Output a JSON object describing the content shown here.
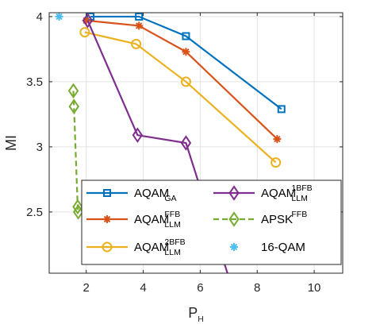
{
  "chart_data": {
    "type": "line",
    "xlabel": {
      "main": "P",
      "sub": "H"
    },
    "ylabel": "MI",
    "xlim": [
      0.7,
      11
    ],
    "ylim": [
      2.03,
      4.03
    ],
    "xticks": [
      2,
      4,
      6,
      8,
      10
    ],
    "yticks": [
      2.5,
      3,
      3.5,
      4
    ],
    "ytick_labels": [
      "2.5",
      "3",
      "3.5",
      "4"
    ],
    "grid": true,
    "legend_position": "bottom-left",
    "series": [
      {
        "key": "ga",
        "name": {
          "main": "AQAM",
          "sub": "GA",
          "sup": ""
        },
        "color": "#0072BD",
        "marker": "square",
        "line": "solid",
        "x": [
          2.15,
          3.85,
          5.5,
          8.85
        ],
        "y": [
          4.0,
          4.0,
          3.85,
          3.29
        ]
      },
      {
        "key": "ffb",
        "name": {
          "main": "AQAM",
          "sub": "LLM",
          "sup": "FFB"
        },
        "color": "#D95319",
        "marker": "asterisk",
        "line": "solid",
        "x": [
          2.0,
          3.85,
          5.5,
          8.7
        ],
        "y": [
          3.97,
          3.93,
          3.73,
          3.06
        ]
      },
      {
        "key": "bfb2",
        "name": {
          "main": "AQAM",
          "sub": "LLM",
          "sup": "2BFB"
        },
        "color": "#EDB120",
        "marker": "circle",
        "line": "solid",
        "x": [
          1.95,
          3.75,
          5.5,
          8.65
        ],
        "y": [
          3.88,
          3.79,
          3.5,
          2.88
        ]
      },
      {
        "key": "bfb1",
        "name": {
          "main": "AQAM",
          "sub": "LLM",
          "sup": "1BFB"
        },
        "color": "#7E2F8E",
        "marker": "diamond",
        "line": "solid",
        "x": [
          2.05,
          3.8,
          5.5,
          7.0
        ],
        "y": [
          3.97,
          3.09,
          3.03,
          2.0
        ]
      },
      {
        "key": "apsk",
        "name": {
          "main": "APSK",
          "sub": "",
          "sup": "FFB"
        },
        "color": "#77AC30",
        "marker": "diamond",
        "line": "dashed",
        "x": [
          1.55,
          1.57,
          1.7,
          1.72
        ],
        "y": [
          3.43,
          3.31,
          2.54,
          2.5
        ]
      },
      {
        "key": "qam16",
        "name": {
          "main": "16-QAM",
          "sub": "",
          "sup": ""
        },
        "color": "#4DBEEE",
        "marker": "asterisk",
        "line": "none",
        "x": [
          1.05
        ],
        "y": [
          4.0
        ]
      }
    ]
  }
}
